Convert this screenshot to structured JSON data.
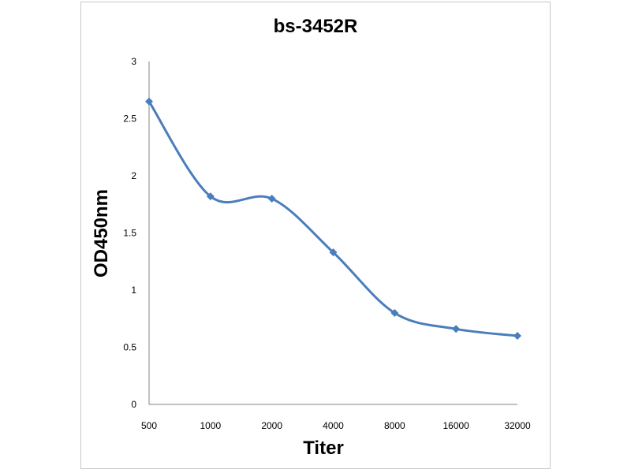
{
  "chart_data": {
    "type": "line",
    "title": "bs-3452R",
    "xlabel": "Titer",
    "ylabel": "OD450nm",
    "categories": [
      "500",
      "1000",
      "2000",
      "4000",
      "8000",
      "16000",
      "32000"
    ],
    "series": [
      {
        "values": [
          2.65,
          1.82,
          1.8,
          1.33,
          0.8,
          0.66,
          0.6
        ]
      }
    ],
    "ylim": [
      0,
      3
    ],
    "yticks": [
      "0",
      "0.5",
      "1",
      "1.5",
      "2",
      "2.5",
      "3"
    ],
    "grid": false,
    "legend": "none",
    "line_color": "#4a7ebb",
    "smooth": true,
    "marker": "diamond"
  }
}
